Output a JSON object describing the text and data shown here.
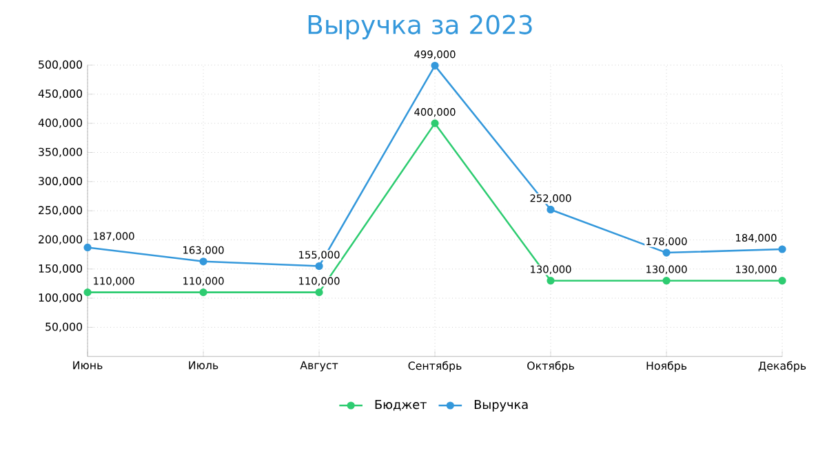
{
  "chart_data": {
    "type": "line",
    "title": "Выручка за 2023",
    "categories": [
      "Июнь",
      "Июль",
      "Август",
      "Сентябрь",
      "Октябрь",
      "Ноябрь",
      "Декабрь"
    ],
    "series": [
      {
        "name": "Бюджет",
        "color": "#2ecc71",
        "values": [
          110000,
          110000,
          110000,
          400000,
          130000,
          130000,
          130000
        ],
        "value_labels": [
          "110,000",
          "110,000",
          "110,000",
          "400,000",
          "130,000",
          "130,000",
          "130,000"
        ]
      },
      {
        "name": "Выручка",
        "color": "#3498db",
        "values": [
          187000,
          163000,
          155000,
          499000,
          252000,
          178000,
          184000
        ],
        "value_labels": [
          "187,000",
          "163,000",
          "155,000",
          "499,000",
          "252,000",
          "178,000",
          "184,000"
        ]
      }
    ],
    "ylim": [
      0,
      500000
    ],
    "yticks": [
      {
        "value": 50000,
        "label": "50,000"
      },
      {
        "value": 100000,
        "label": "100,000"
      },
      {
        "value": 150000,
        "label": "150,000"
      },
      {
        "value": 200000,
        "label": "200,000"
      },
      {
        "value": 250000,
        "label": "250,000"
      },
      {
        "value": 300000,
        "label": "300,000"
      },
      {
        "value": 350000,
        "label": "350,000"
      },
      {
        "value": 400000,
        "label": "400,000"
      },
      {
        "value": 450000,
        "label": "450,000"
      },
      {
        "value": 500000,
        "label": "500,000"
      }
    ],
    "grid": true,
    "legend": "bottom",
    "marker": "circle",
    "line_style": "solid"
  }
}
